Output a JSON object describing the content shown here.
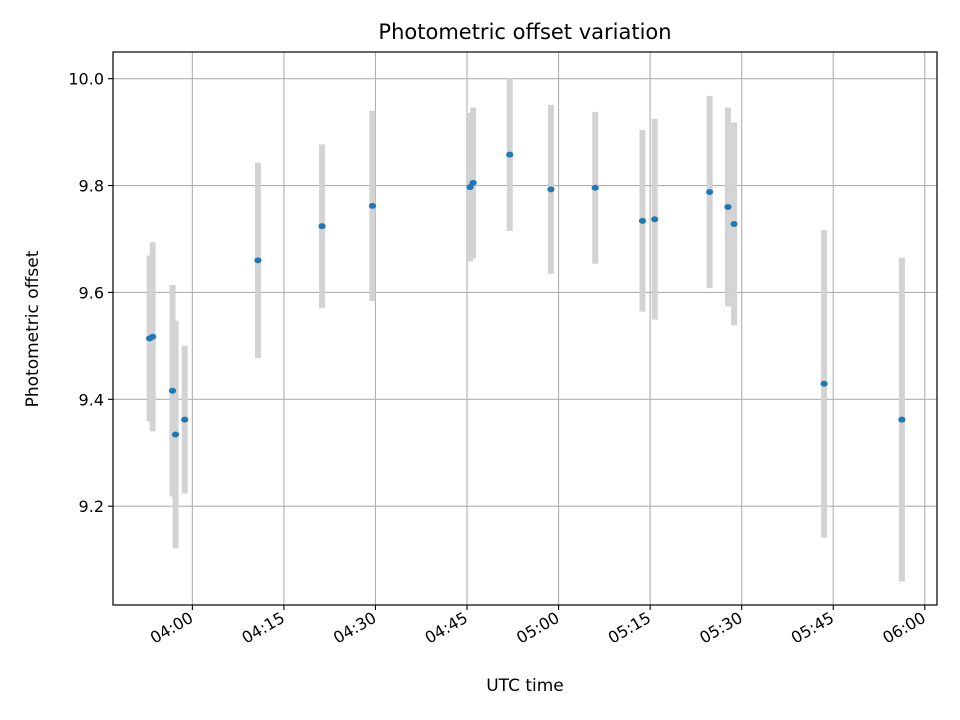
{
  "chart_data": {
    "type": "scatter",
    "title": "Photometric offset variation",
    "xlabel": "UTC time",
    "ylabel": "Photometric offset",
    "x_axis_type": "time",
    "xlim": [
      "03:47",
      "06:02"
    ],
    "ylim": [
      9.015,
      10.05
    ],
    "grid": true,
    "legend": "none",
    "x_ticks": [
      "04:00",
      "04:15",
      "04:30",
      "04:45",
      "05:00",
      "05:15",
      "05:30",
      "05:45",
      "06:00"
    ],
    "y_ticks": [
      9.2,
      9.4,
      9.6,
      9.8,
      10.0
    ],
    "point_color": "#1f77b4",
    "errorbar_color": "#d3d3d3",
    "points": [
      {
        "x": "03:53:00",
        "y": 9.514,
        "err": 0.155
      },
      {
        "x": "03:53:30",
        "y": 9.517,
        "err": 0.177
      },
      {
        "x": "03:56:45",
        "y": 9.416,
        "err": 0.198
      },
      {
        "x": "03:57:15",
        "y": 9.334,
        "err": 0.213
      },
      {
        "x": "03:58:45",
        "y": 9.362,
        "err": 0.138
      },
      {
        "x": "04:10:45",
        "y": 9.66,
        "err": 0.183
      },
      {
        "x": "04:21:15",
        "y": 9.724,
        "err": 0.153
      },
      {
        "x": "04:29:30",
        "y": 9.762,
        "err": 0.178
      },
      {
        "x": "04:45:30",
        "y": 9.797,
        "err": 0.139
      },
      {
        "x": "04:46:00",
        "y": 9.805,
        "err": 0.141
      },
      {
        "x": "04:52:00",
        "y": 9.858,
        "err": 0.143
      },
      {
        "x": "04:58:45",
        "y": 9.793,
        "err": 0.158
      },
      {
        "x": "05:06:00",
        "y": 9.796,
        "err": 0.142
      },
      {
        "x": "05:13:45",
        "y": 9.734,
        "err": 0.17
      },
      {
        "x": "05:15:45",
        "y": 9.737,
        "err": 0.188
      },
      {
        "x": "05:24:45",
        "y": 9.788,
        "err": 0.18
      },
      {
        "x": "05:27:45",
        "y": 9.76,
        "err": 0.186
      },
      {
        "x": "05:28:45",
        "y": 9.728,
        "err": 0.19
      },
      {
        "x": "05:43:30",
        "y": 9.429,
        "err": 0.288
      },
      {
        "x": "05:56:15",
        "y": 9.362,
        "err": 0.303
      }
    ]
  }
}
